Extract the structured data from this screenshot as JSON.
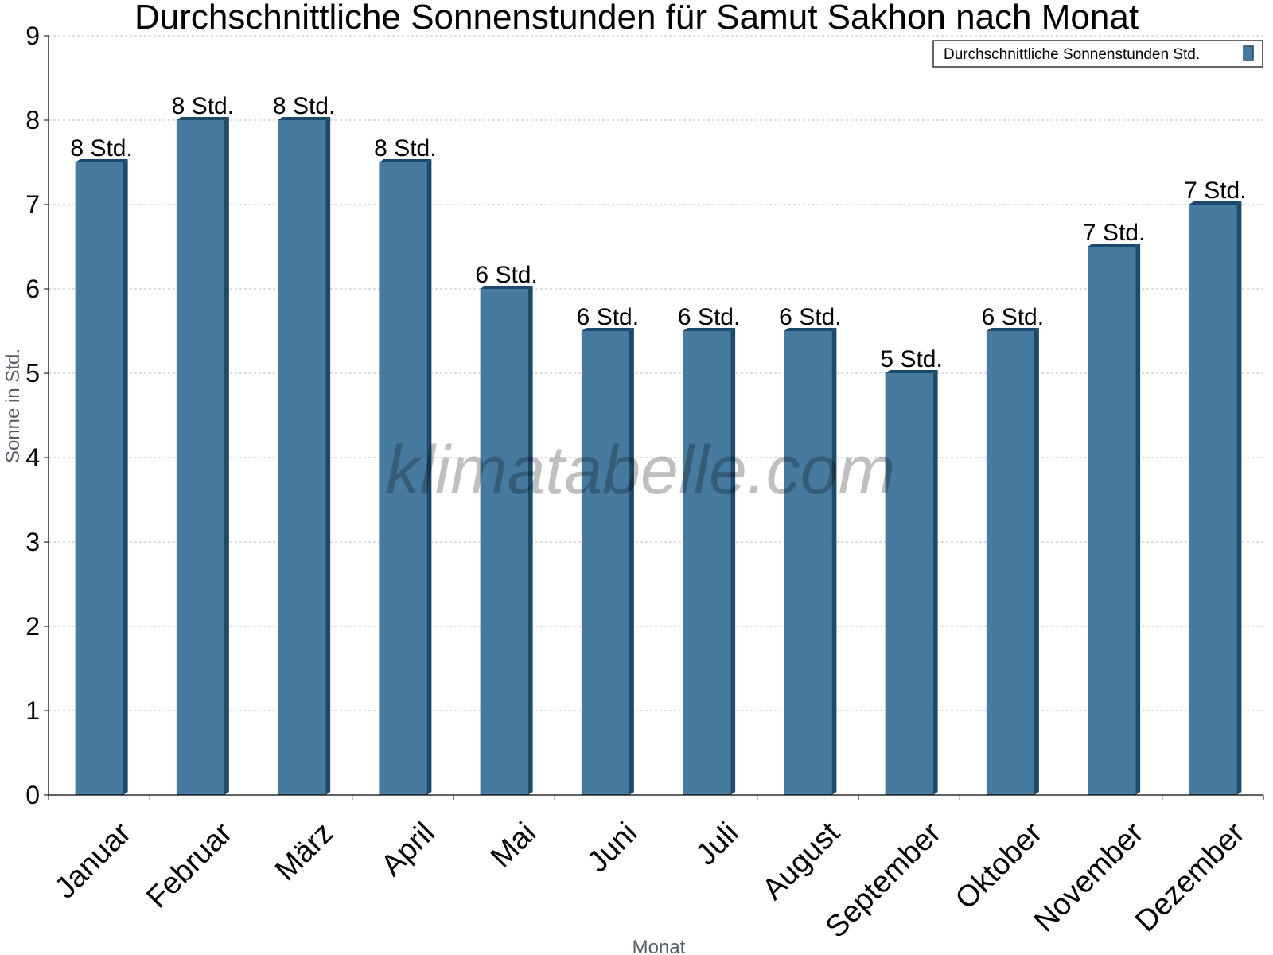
{
  "chart_data": {
    "type": "bar",
    "title": "Durchschnittliche Sonnenstunden für Samut Sakhon nach Monat",
    "xlabel": "Monat",
    "ylabel": "Sonne in Std.",
    "ylim": [
      0,
      9
    ],
    "yticks": [
      "0",
      "1",
      "2",
      "3",
      "4",
      "5",
      "6",
      "7",
      "8",
      "9"
    ],
    "grid": true,
    "legend_position": "top-right",
    "categories": [
      "Januar",
      "Februar",
      "März",
      "April",
      "Mai",
      "Juni",
      "Juli",
      "August",
      "September",
      "Oktober",
      "November",
      "Dezember"
    ],
    "series": [
      {
        "name": "Durchschnittliche Sonnenstunden Std.",
        "values": [
          7.5,
          8.0,
          8.0,
          7.5,
          6.0,
          5.5,
          5.5,
          5.5,
          5.0,
          5.5,
          6.5,
          7.0
        ],
        "labels": [
          "8 Std.",
          "8 Std.",
          "8 Std.",
          "8 Std.",
          "6 Std.",
          "6 Std.",
          "6 Std.",
          "6 Std.",
          "5 Std.",
          "6 Std.",
          "7 Std.",
          "7 Std."
        ],
        "color": "#467b9f",
        "side_color": "#1b4a6c"
      }
    ],
    "watermark": "klimatabelle.com"
  }
}
